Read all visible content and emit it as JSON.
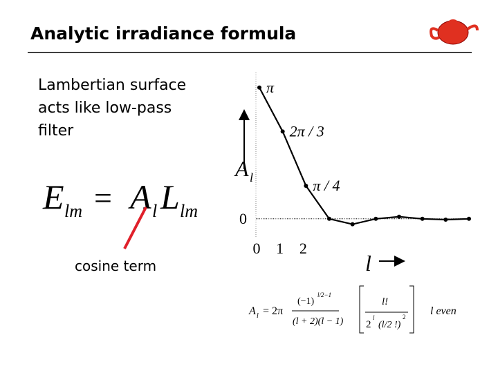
{
  "title": "Analytic irradiance formula",
  "bullet": [
    "Lambertian surface",
    "acts like low-pass",
    "filter"
  ],
  "equation": [
    "E",
    "lm",
    "=",
    "A",
    "l",
    "L",
    "lm"
  ],
  "annotation": "cosine term",
  "formula": [
    "A",
    "l",
    "= 2π",
    "(−1)",
    "l/2−1",
    "(l + 2)(l − 1)",
    "l!",
    "2",
    "l",
    "(l/2 !)",
    "2",
    "l even"
  ],
  "chart_data": {
    "type": "line",
    "x": [
      0,
      1,
      2,
      3,
      4,
      5,
      6,
      7,
      8,
      9
    ],
    "values": [
      3.14,
      2.09,
      0.79,
      0,
      -0.13,
      0,
      0.05,
      0,
      -0.02,
      0
    ],
    "value_labels": [
      "π",
      "2π / 3",
      "π / 4",
      null,
      null,
      null,
      null,
      null,
      null,
      null
    ],
    "color": "#000000",
    "xlim": [
      0,
      9
    ],
    "xticks": [
      0,
      1,
      2
    ],
    "ylim": [
      -0.4,
      3.5
    ],
    "yticks": [
      0
    ],
    "ylabel": "A",
    "ylabel_sub": "l",
    "xlabel": "l"
  }
}
